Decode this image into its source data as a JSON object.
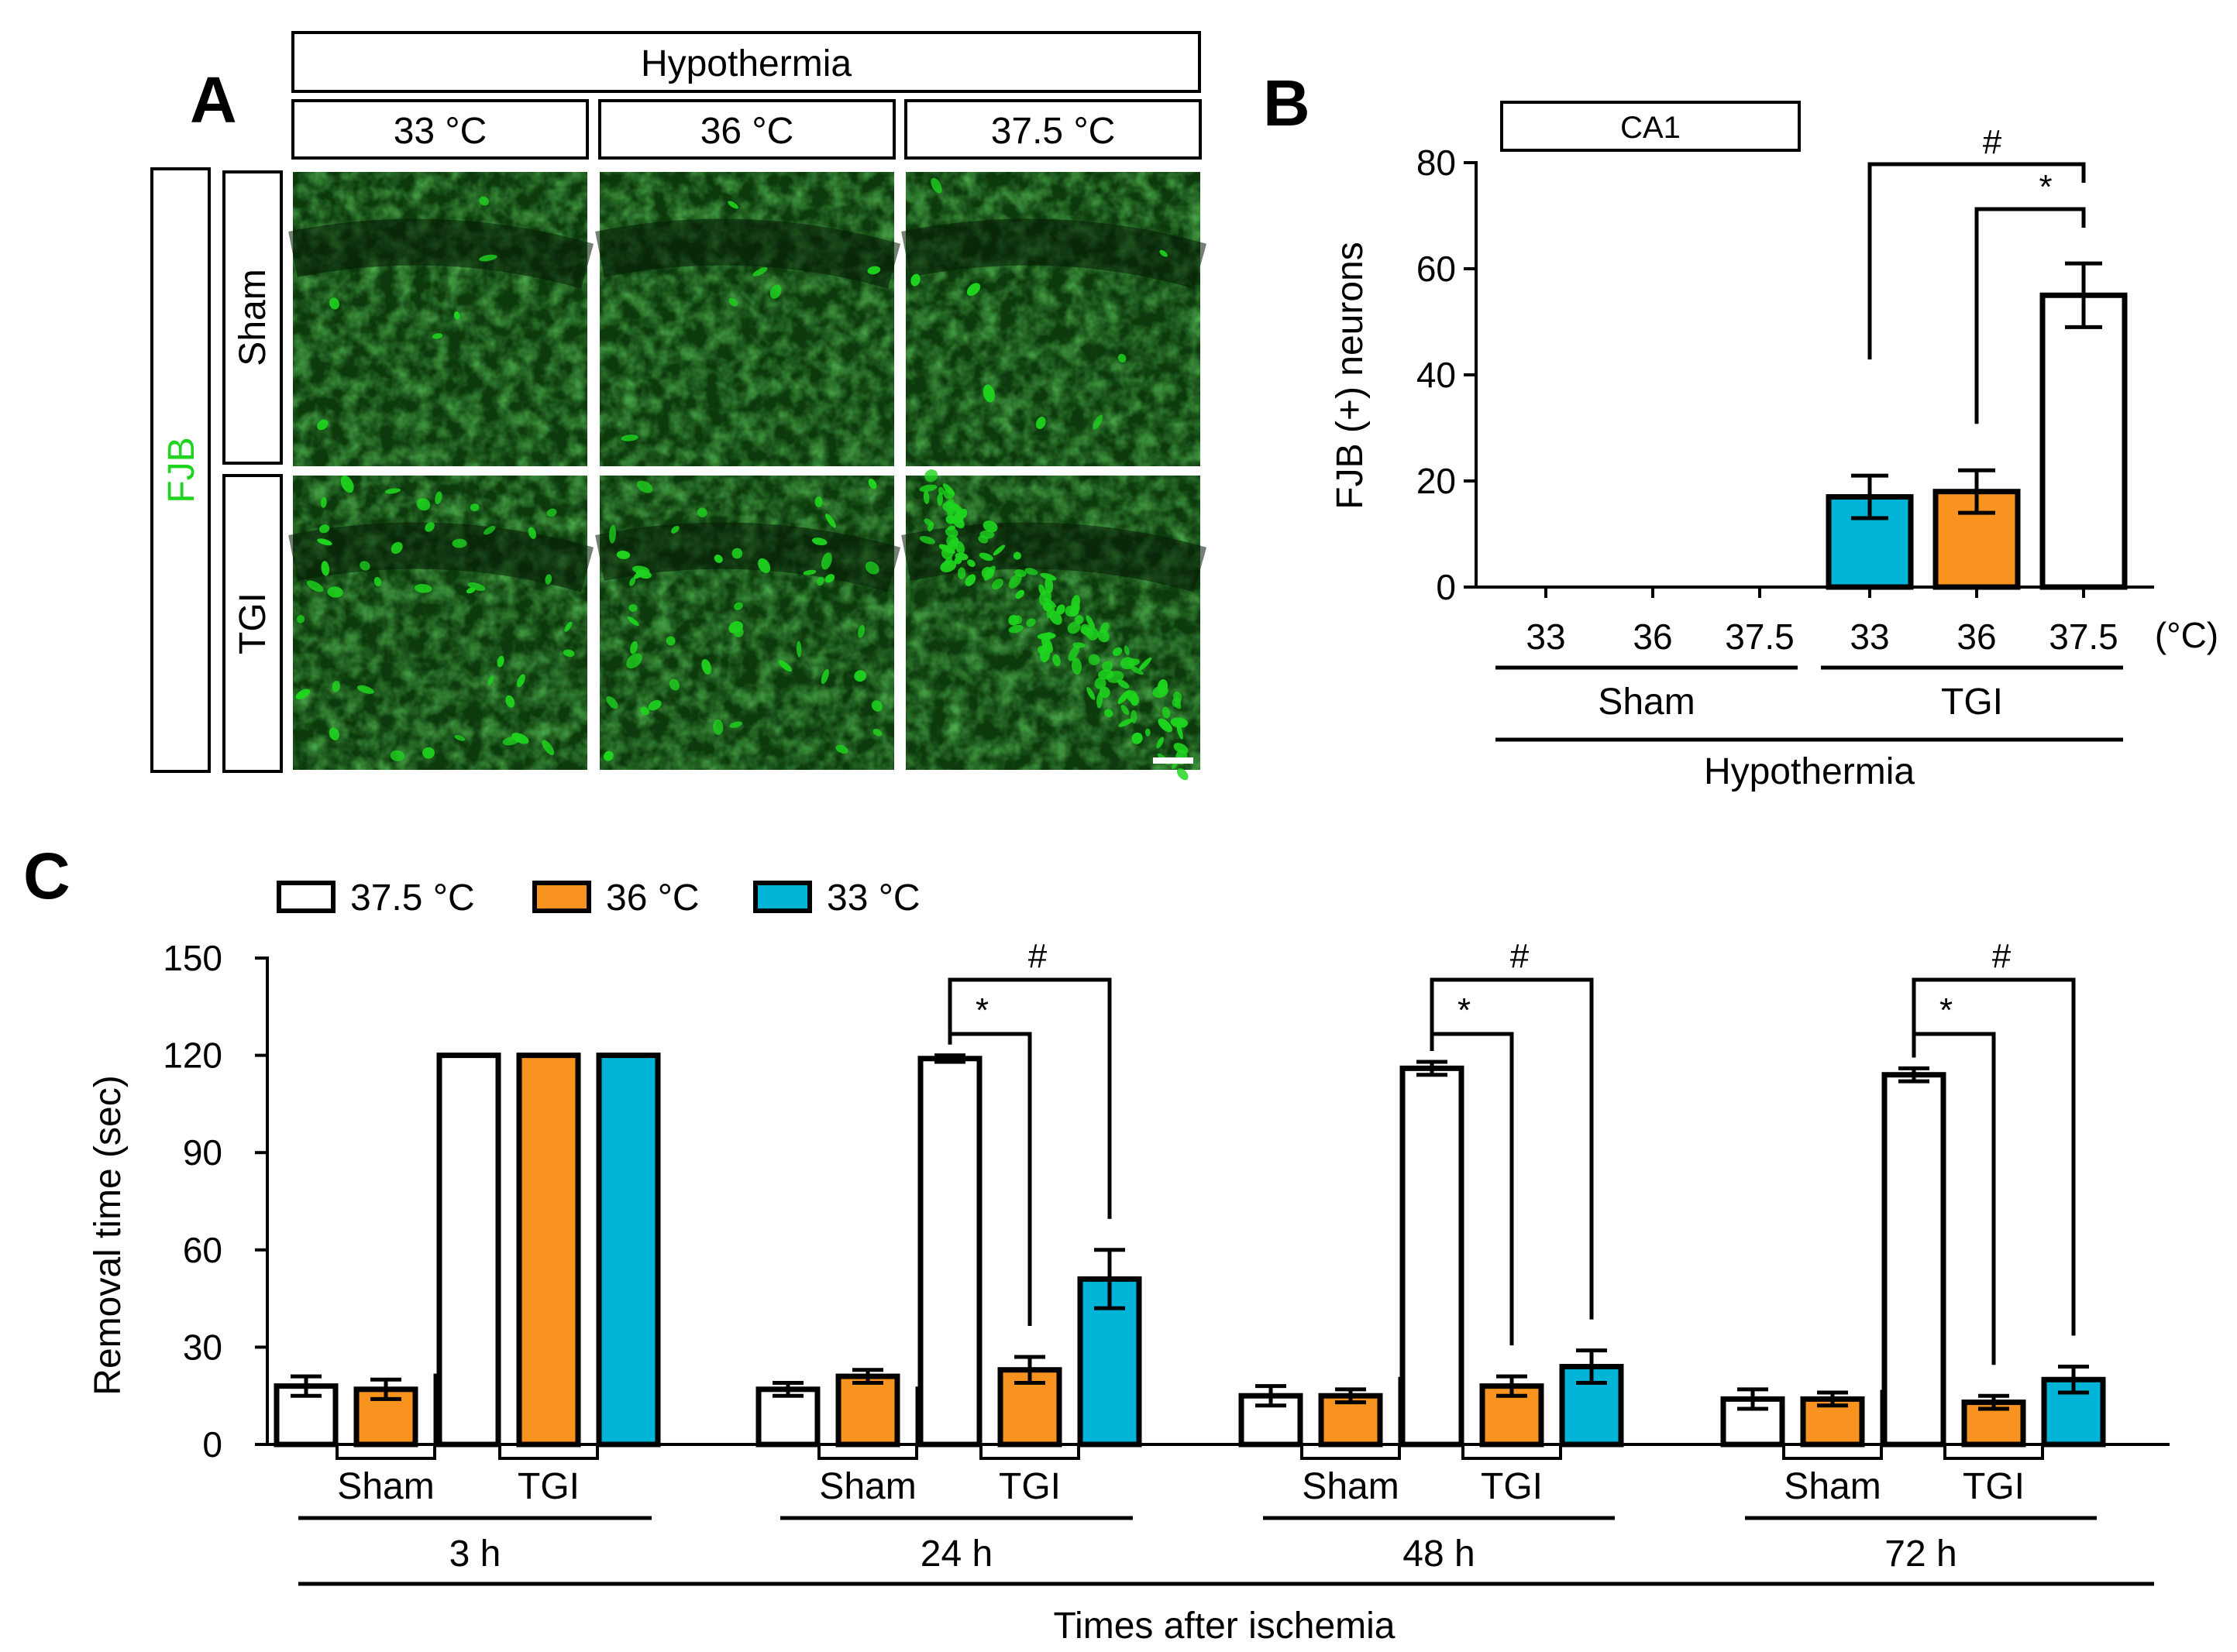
{
  "panel_letters": [
    "A",
    "B",
    "C"
  ],
  "panelA": {
    "header": "Hypothermia",
    "columns": [
      "33 °C",
      "36 °C",
      "37.5 °C"
    ],
    "stain_label": "FJB",
    "stain_color": "#1ed41e",
    "rows": [
      "Sham",
      "TGI"
    ]
  },
  "colors": {
    "t37_5": "#ffffff",
    "t36": "#f7931e",
    "t33": "#00b4d8",
    "micrograph_bg": "#0d3a0d"
  },
  "chart_data": [
    {
      "type": "bar",
      "panel": "B",
      "title": "CA1",
      "ylabel": "FJB (+) neurons",
      "ylim": [
        0,
        80
      ],
      "yticks": [
        "0",
        "20",
        "40",
        "60",
        "80"
      ],
      "categories": [
        "33",
        "36",
        "37.5",
        "33",
        "36",
        "37.5"
      ],
      "unit_label": "(°C)",
      "groups": [
        "Sham",
        "TGI"
      ],
      "group_title": "Hypothermia",
      "values": [
        0,
        0,
        0,
        17,
        18,
        55
      ],
      "errors": [
        0,
        0,
        0,
        4,
        4,
        6
      ],
      "bar_colors": [
        "#00b4d8",
        "#f7931e",
        "#ffffff",
        "#00b4d8",
        "#f7931e",
        "#ffffff"
      ],
      "significance": [
        {
          "label": "#",
          "from": 3,
          "to": 5
        },
        {
          "label": "*",
          "from": 4,
          "to": 5
        }
      ]
    },
    {
      "type": "bar",
      "panel": "C",
      "ylabel": "Removal time (sec)",
      "xlabel": "Times after ischemia",
      "ylim": [
        0,
        150
      ],
      "yticks": [
        "0",
        "30",
        "60",
        "90",
        "120",
        "150"
      ],
      "legend": [
        "37.5 °C",
        "36 °C",
        "33 °C"
      ],
      "legend_position": "top-left",
      "time_points": [
        "3 h",
        "24 h",
        "48 h",
        "72 h"
      ],
      "conditions": [
        "Sham",
        "TGI"
      ],
      "series": [
        {
          "name": "37.5 °C",
          "values": [
            18,
            120,
            17,
            119,
            15,
            116,
            14,
            114
          ],
          "errors": [
            3,
            0,
            2,
            1,
            3,
            2,
            3,
            2
          ]
        },
        {
          "name": "36 °C",
          "values": [
            17,
            120,
            21,
            23,
            15,
            18,
            14,
            13
          ],
          "errors": [
            3,
            0,
            2,
            4,
            2,
            3,
            2,
            2
          ]
        },
        {
          "name": "33 °C",
          "values": [
            21,
            120,
            17,
            51,
            20,
            24,
            16,
            20
          ],
          "errors": [
            3,
            0,
            1,
            9,
            3,
            5,
            2,
            4
          ]
        }
      ],
      "significance": [
        {
          "time": 1,
          "label": "#",
          "to_series": 2
        },
        {
          "time": 1,
          "label": "*",
          "to_series": 1
        },
        {
          "time": 2,
          "label": "#",
          "to_series": 2
        },
        {
          "time": 2,
          "label": "*",
          "to_series": 1
        },
        {
          "time": 3,
          "label": "#",
          "to_series": 2
        },
        {
          "time": 3,
          "label": "*",
          "to_series": 1
        }
      ]
    }
  ]
}
